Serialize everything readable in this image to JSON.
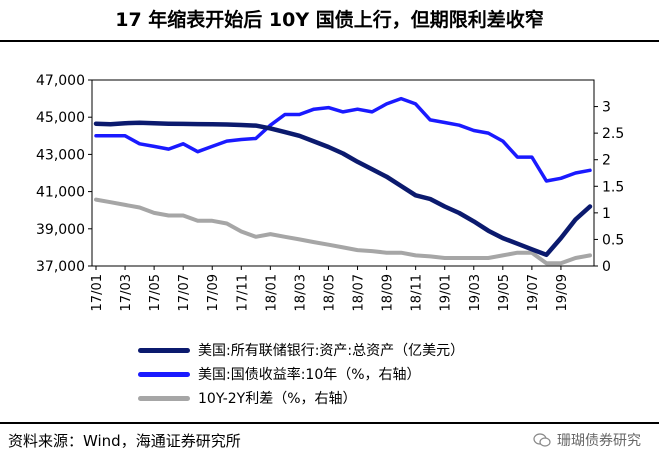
{
  "title": "17 年缩表开始后 10Y 国债上行，但期限利差收窄",
  "source": "资料来源：Wind，海通证券研究所",
  "watermark": "珊瑚债券研究",
  "colors": {
    "assets": "#0b1a6e",
    "yield": "#1a1aff",
    "spread": "#a6a6a6"
  },
  "chart_data": {
    "type": "line",
    "x": [
      "2017-01",
      "2017-02",
      "2017-03",
      "2017-04",
      "2017-05",
      "2017-06",
      "2017-07",
      "2017-08",
      "2017-09",
      "2017-10",
      "2017-11",
      "2017-12",
      "2018-01",
      "2018-02",
      "2018-03",
      "2018-04",
      "2018-05",
      "2018-06",
      "2018-07",
      "2018-08",
      "2018-09",
      "2018-10",
      "2018-11",
      "2018-12",
      "2019-01",
      "2019-02",
      "2019-03",
      "2019-04",
      "2019-05",
      "2019-06",
      "2019-07",
      "2019-08",
      "2019-09",
      "2019-10",
      "2019-11"
    ],
    "x_tick_labels": [
      "17/01",
      "17/03",
      "17/05",
      "17/07",
      "17/09",
      "17/11",
      "18/01",
      "18/03",
      "18/05",
      "18/07",
      "18/09",
      "18/11",
      "19/01",
      "19/03",
      "19/05",
      "19/07",
      "19/09"
    ],
    "left_axis": {
      "ylim": [
        37000,
        47000
      ],
      "ticks": [
        "37,000",
        "39,000",
        "41,000",
        "43,000",
        "45,000",
        "47,000"
      ]
    },
    "right_axis": {
      "ylim": [
        0,
        3.5
      ],
      "ticks": [
        "0",
        "0.5",
        "1",
        "1.5",
        "2",
        "2.5",
        "3"
      ]
    },
    "series": [
      {
        "name": "美国:所有联储银行:资产:总资产（亿美元）",
        "axis": "left",
        "values": [
          44650,
          44620,
          44680,
          44700,
          44680,
          44650,
          44640,
          44630,
          44620,
          44610,
          44580,
          44550,
          44400,
          44200,
          44000,
          43700,
          43400,
          43050,
          42600,
          42200,
          41800,
          41300,
          40800,
          40600,
          40200,
          39850,
          39400,
          38900,
          38500,
          38200,
          37900,
          37600,
          38500,
          39500,
          40200
        ]
      },
      {
        "name": "美国:国债收益率:10年（%，右轴）",
        "axis": "right",
        "values": [
          2.45,
          2.45,
          2.45,
          2.3,
          2.25,
          2.2,
          2.3,
          2.15,
          2.25,
          2.35,
          2.38,
          2.4,
          2.65,
          2.85,
          2.85,
          2.95,
          2.98,
          2.9,
          2.95,
          2.9,
          3.05,
          3.15,
          3.05,
          2.75,
          2.7,
          2.65,
          2.55,
          2.5,
          2.35,
          2.05,
          2.05,
          1.6,
          1.65,
          1.75,
          1.8
        ]
      },
      {
        "name": "10Y-2Y利差（%，右轴）",
        "axis": "right",
        "values": [
          1.25,
          1.2,
          1.15,
          1.1,
          1.0,
          0.95,
          0.95,
          0.85,
          0.85,
          0.8,
          0.65,
          0.55,
          0.6,
          0.55,
          0.5,
          0.45,
          0.4,
          0.35,
          0.3,
          0.28,
          0.25,
          0.25,
          0.2,
          0.18,
          0.15,
          0.15,
          0.15,
          0.15,
          0.2,
          0.25,
          0.25,
          0.05,
          0.05,
          0.15,
          0.2
        ]
      }
    ],
    "legend": [
      "美国:所有联储银行:资产:总资产（亿美元）",
      "美国:国债收益率:10年（%，右轴）",
      "10Y-2Y利差（%，右轴）"
    ]
  }
}
